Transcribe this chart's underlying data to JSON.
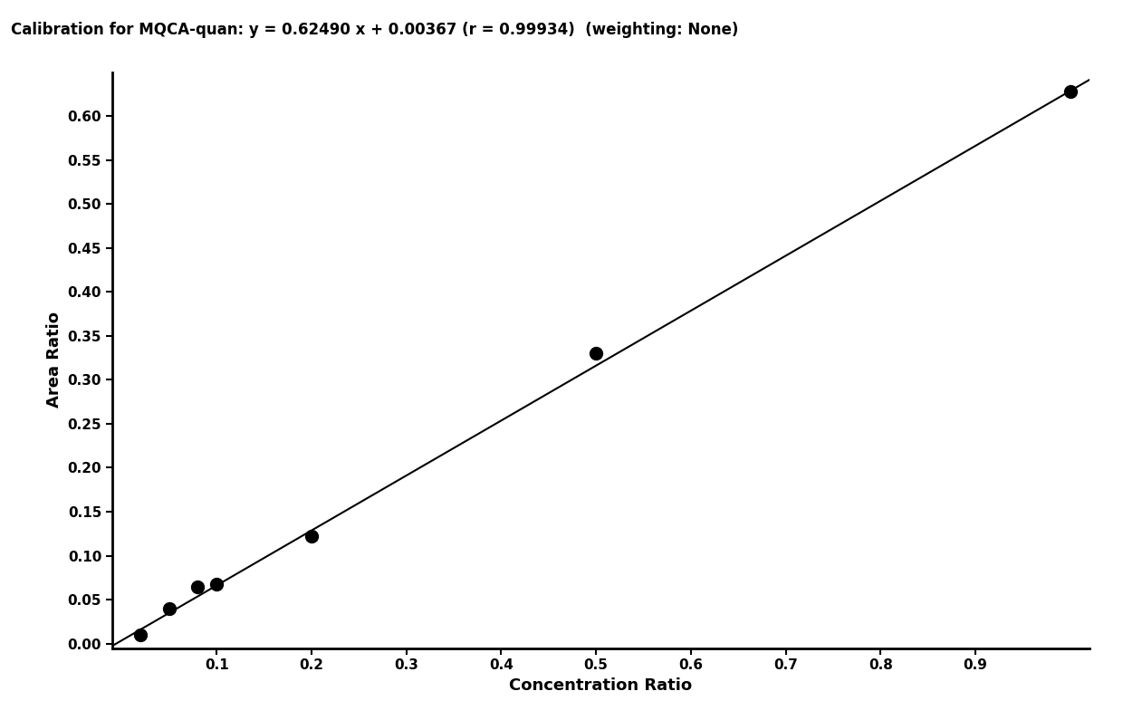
{
  "title": "Calibration for MQCA-quan: y = 0.62490 x + 0.00367 (r = 0.99934)  (weighting: None)",
  "xlabel": "Concentration Ratio",
  "ylabel": "Area Ratio",
  "slope": 0.6249,
  "intercept": 0.00367,
  "data_points": [
    [
      0.02,
      0.01
    ],
    [
      0.05,
      0.04
    ],
    [
      0.08,
      0.065
    ],
    [
      0.1,
      0.068
    ],
    [
      0.2,
      0.122
    ],
    [
      0.5,
      0.33
    ],
    [
      1.0,
      0.628
    ]
  ],
  "xlim": [
    -0.01,
    1.02
  ],
  "ylim": [
    -0.005,
    0.65
  ],
  "xticks": [
    0.1,
    0.2,
    0.3,
    0.4,
    0.5,
    0.6,
    0.7,
    0.8,
    0.9
  ],
  "yticks": [
    0.0,
    0.05,
    0.1,
    0.15,
    0.2,
    0.25,
    0.3,
    0.35,
    0.4,
    0.45,
    0.5,
    0.55,
    0.6
  ],
  "line_color": "#000000",
  "dot_color": "#000000",
  "dot_size": 100,
  "line_width": 1.5,
  "title_fontsize": 12,
  "label_fontsize": 13,
  "tick_fontsize": 11,
  "font_weight": "bold",
  "background_color": "#ffffff"
}
